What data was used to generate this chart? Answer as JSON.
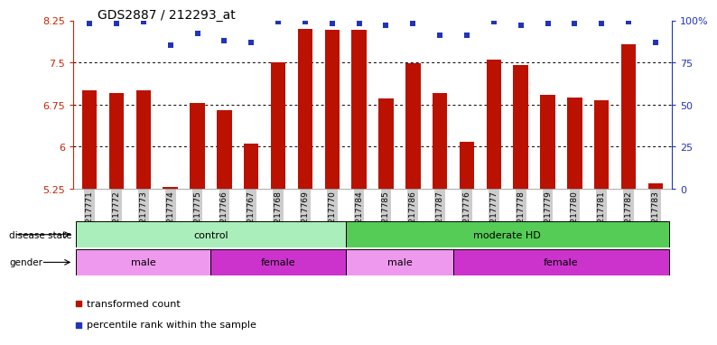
{
  "title": "GDS2887 / 212293_at",
  "samples": [
    "GSM217771",
    "GSM217772",
    "GSM217773",
    "GSM217774",
    "GSM217775",
    "GSM217766",
    "GSM217767",
    "GSM217768",
    "GSM217769",
    "GSM217770",
    "GSM217784",
    "GSM217785",
    "GSM217786",
    "GSM217787",
    "GSM217776",
    "GSM217777",
    "GSM217778",
    "GSM217779",
    "GSM217780",
    "GSM217781",
    "GSM217782",
    "GSM217783"
  ],
  "bar_values": [
    7.0,
    6.95,
    7.0,
    5.28,
    6.78,
    6.65,
    6.05,
    7.5,
    8.1,
    8.08,
    8.08,
    6.85,
    7.48,
    6.95,
    6.08,
    7.55,
    7.45,
    6.92,
    6.88,
    6.82,
    7.83,
    5.34
  ],
  "percentile_values": [
    98,
    98,
    99,
    85,
    92,
    88,
    87,
    99,
    99,
    98,
    98,
    97,
    98,
    91,
    91,
    99,
    97,
    98,
    98,
    98,
    99,
    87
  ],
  "ylim_left": [
    5.25,
    8.25
  ],
  "yticks_left": [
    5.25,
    6.0,
    6.75,
    7.5,
    8.25
  ],
  "ytick_labels_left": [
    "5.25",
    "6",
    "6.75",
    "7.5",
    "8.25"
  ],
  "ylim_right": [
    0,
    100
  ],
  "yticks_right": [
    0,
    25,
    50,
    75,
    100
  ],
  "ytick_labels_right": [
    "0",
    "25",
    "50",
    "75",
    "100%"
  ],
  "bar_color": "#bb1100",
  "dot_color": "#2233bb",
  "grid_color": "#333333",
  "background_color": "#ffffff",
  "disease_state_groups": [
    {
      "label": "control",
      "start": 0,
      "end": 10,
      "color": "#aaeebb"
    },
    {
      "label": "moderate HD",
      "start": 10,
      "end": 22,
      "color": "#55cc55"
    }
  ],
  "gender_groups": [
    {
      "label": "male",
      "start": 0,
      "end": 5,
      "color": "#ee99ee"
    },
    {
      "label": "female",
      "start": 5,
      "end": 10,
      "color": "#cc33cc"
    },
    {
      "label": "male",
      "start": 10,
      "end": 14,
      "color": "#ee99ee"
    },
    {
      "label": "female",
      "start": 14,
      "end": 22,
      "color": "#cc33cc"
    }
  ],
  "legend_bar_label": "transformed count",
  "legend_dot_label": "percentile rank within the sample",
  "disease_state_label": "disease state",
  "gender_label": "gender",
  "xticklabel_bg": "#cccccc",
  "left_axis_color": "#cc2200",
  "right_axis_color": "#2233bb"
}
